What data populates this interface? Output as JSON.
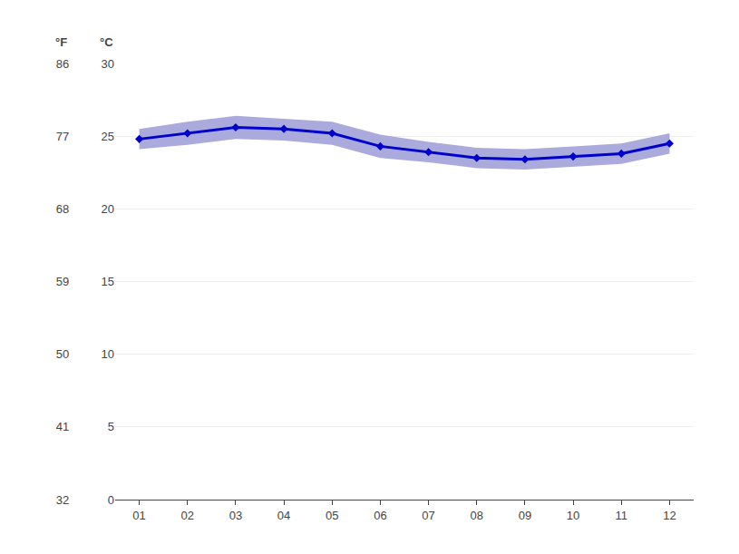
{
  "chart_data": {
    "type": "line",
    "x": [
      1,
      2,
      3,
      4,
      5,
      6,
      7,
      8,
      9,
      10,
      11,
      12
    ],
    "xlim": [
      0.5,
      12.5
    ],
    "xticks": [
      {
        "value": 1,
        "label": "01"
      },
      {
        "value": 2,
        "label": "02"
      },
      {
        "value": 3,
        "label": "03"
      },
      {
        "value": 4,
        "label": "04"
      },
      {
        "value": 5,
        "label": "05"
      },
      {
        "value": 6,
        "label": "06"
      },
      {
        "value": 7,
        "label": "07"
      },
      {
        "value": 8,
        "label": "08"
      },
      {
        "value": 9,
        "label": "09"
      },
      {
        "value": 10,
        "label": "10"
      },
      {
        "value": 11,
        "label": "11"
      },
      {
        "value": 12,
        "label": "12"
      }
    ],
    "ylabel": "°C",
    "ylim": [
      0,
      30
    ],
    "yticks": [
      0,
      5,
      10,
      15,
      20,
      25,
      30
    ],
    "y2label": "°F",
    "y2lim": [
      32,
      86
    ],
    "y2ticks": [
      32,
      41,
      50,
      59,
      68,
      77,
      86
    ],
    "grid": true,
    "series": [
      {
        "type": "band",
        "color": "#aaaadd",
        "low": [
          24.1,
          24.4,
          24.8,
          24.7,
          24.4,
          23.5,
          23.2,
          22.8,
          22.7,
          22.9,
          23.1,
          23.8
        ],
        "high": [
          25.5,
          26.0,
          26.4,
          26.2,
          26.0,
          25.1,
          24.6,
          24.2,
          24.1,
          24.3,
          24.5,
          25.2
        ]
      },
      {
        "type": "line",
        "color": "#0000CC",
        "marker": "diamond",
        "values": [
          24.8,
          25.2,
          25.6,
          25.5,
          25.2,
          24.3,
          23.9,
          23.5,
          23.4,
          23.6,
          23.8,
          24.5
        ]
      }
    ]
  }
}
